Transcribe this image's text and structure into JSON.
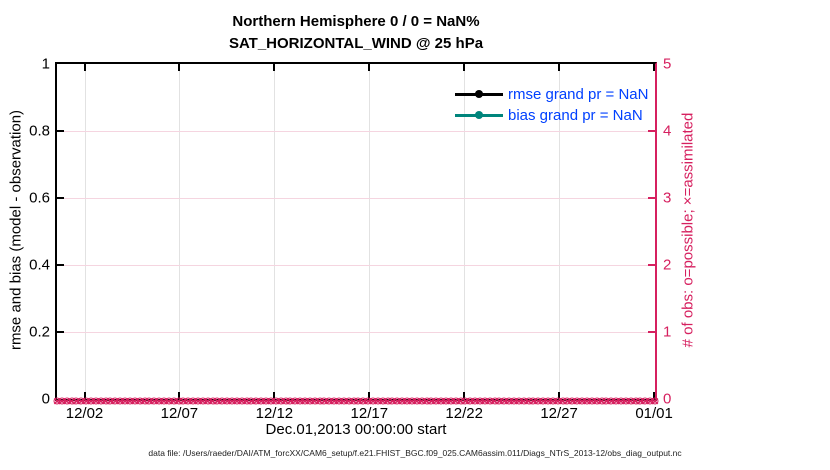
{
  "figure": {
    "title_line1": "Northern Hemisphere 0 / 0 = NaN%",
    "title_line2": "SAT_HORIZONTAL_WIND @ 25 hPa",
    "xlabel": "Dec.01,2013 00:00:00 start",
    "footer": "data file: /Users/raeder/DAI/ATM_forcXX/CAM6_setup/f.e21.FHIST_BGC.f09_025.CAM6assim.011/Diags_NTrS_2013-12/obs_diag_output.nc"
  },
  "legend": {
    "items": [
      {
        "label": "rmse grand pr = NaN",
        "color": "#000000"
      },
      {
        "label": "bias grand pr = NaN",
        "color": "#00857C"
      }
    ],
    "text_color": "#0040FF"
  },
  "colors": {
    "axis_left": "#000000",
    "axis_right": "#D6205F",
    "obs_marker": "#D6205F",
    "grid_vertical": "#E2E2E2",
    "grid_horizontal": "#F5D5E0",
    "title": "#000000",
    "footer": "#222222"
  },
  "chart_data": {
    "type": "line",
    "title": "Northern Hemisphere 0 / 0 = NaN%",
    "subtitle": "SAT_HORIZONTAL_WIND @ 25 hPa",
    "x_axis": {
      "label": "Dec.01,2013 00:00:00 start",
      "tick_labels": [
        "12/02",
        "12/07",
        "12/12",
        "12/17",
        "12/22",
        "12/27",
        "01/01"
      ],
      "tick_day_values": [
        0,
        5,
        10,
        15,
        20,
        25,
        30
      ],
      "range_days": [
        -1.45,
        30.05
      ],
      "grid": true
    },
    "y_left": {
      "label": "rmse and bias (model - observation)",
      "tick_labels": [
        "0",
        "0.2",
        "0.4",
        "0.6",
        "0.8",
        "1"
      ],
      "tick_values": [
        0,
        0.2,
        0.4,
        0.6,
        0.8,
        1
      ],
      "range": [
        0,
        1
      ],
      "grid": false
    },
    "y_right": {
      "label": "# of obs: o=possible; ×=assimilated",
      "tick_labels": [
        "0",
        "1",
        "2",
        "3",
        "4",
        "5"
      ],
      "tick_values": [
        0,
        1,
        2,
        3,
        4,
        5
      ],
      "range": [
        0,
        5
      ],
      "grid": true
    },
    "series": [
      {
        "name": "rmse",
        "legend": "rmse grand pr = NaN",
        "color": "#000000",
        "points": "none plotted (all NaN)"
      },
      {
        "name": "bias",
        "legend": "bias grand pr = NaN",
        "color": "#00857C",
        "points": "none plotted (all NaN)"
      },
      {
        "name": "obs_possible",
        "marker": "o",
        "color": "#D6205F",
        "n_points": 124,
        "constant_value": 0
      },
      {
        "name": "obs_assimilated",
        "marker": "×",
        "color": "#D6205F",
        "n_points": 124,
        "constant_value": 0
      }
    ],
    "legend_position": "top-right-inside",
    "stats": {
      "n_possible": 0,
      "n_assimilated": 0,
      "percent": "NaN%"
    }
  }
}
